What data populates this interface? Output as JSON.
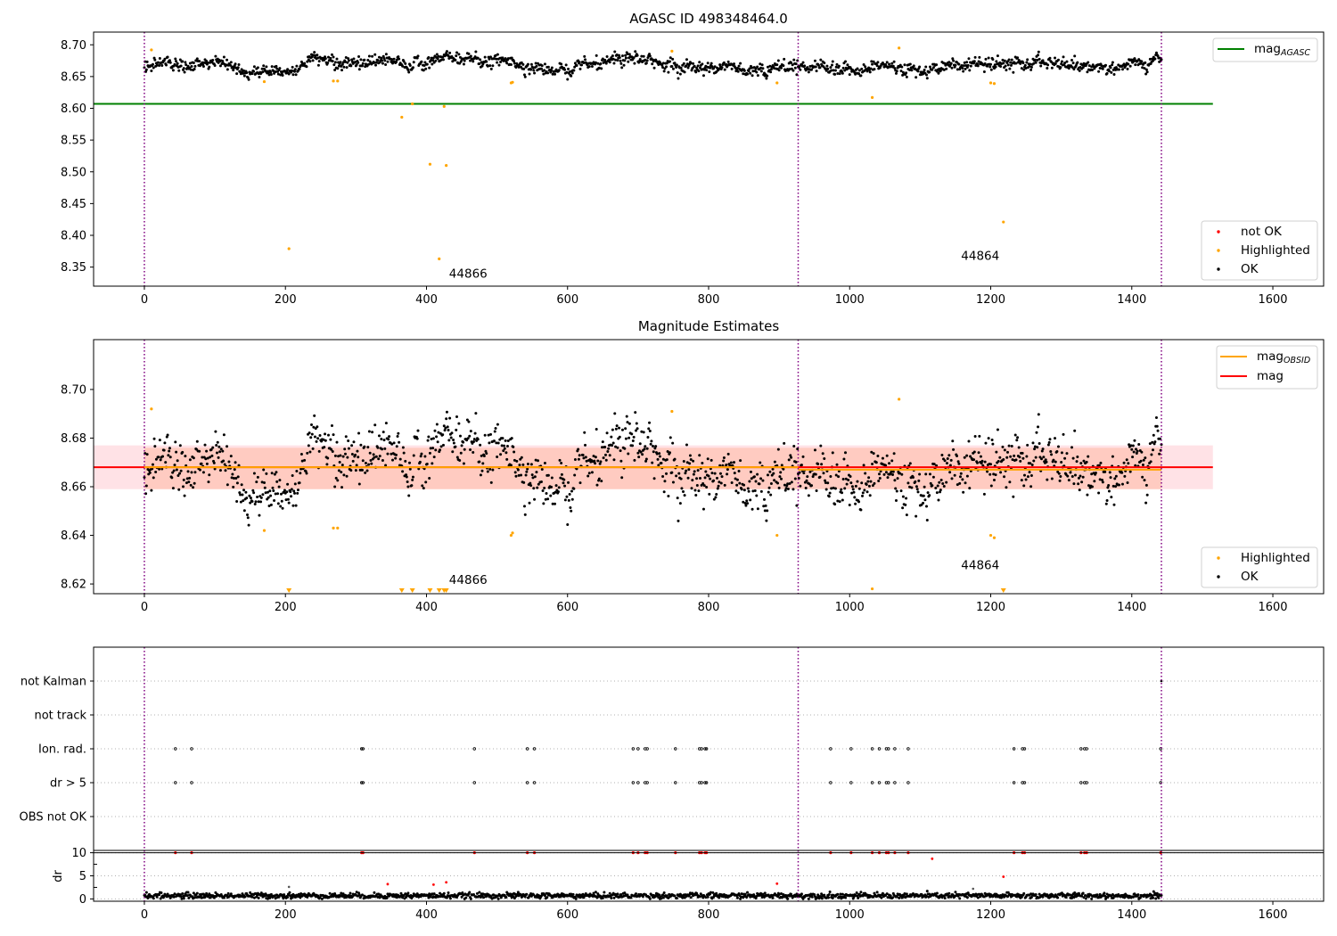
{
  "chart_data": [
    {
      "type": "scatter",
      "title": "AGASC ID 498348464.0",
      "xlabel": "",
      "ylabel": "",
      "xlim": [
        -72,
        1672
      ],
      "ylim": [
        8.32,
        8.72
      ],
      "x_ticks": [
        "0",
        "200",
        "400",
        "600",
        "800",
        "1000",
        "1200",
        "1400",
        "1600"
      ],
      "y_ticks": [
        "8.35",
        "8.40",
        "8.45",
        "8.50",
        "8.55",
        "8.60",
        "8.65",
        "8.70"
      ],
      "grid": false,
      "legend_upper": {
        "placement": "top-right",
        "entries": [
          {
            "label_base": "mag",
            "label_sub": "AGASC",
            "color": "#008000"
          }
        ]
      },
      "legend_lower": {
        "placement": "bottom-right",
        "entries": [
          {
            "label": "not OK",
            "color": "#ff0000"
          },
          {
            "label": "Highlighted",
            "color": "#ffa500"
          },
          {
            "label": "OK",
            "color": "#000000"
          }
        ]
      },
      "mag_agasc": 8.607,
      "ok_series": {
        "color": "#000000",
        "x_range": [
          0,
          1442
        ],
        "mean": 8.668,
        "spread": 0.008
      },
      "highlighted": {
        "color": "#ffa500",
        "x": [
          10,
          170,
          205,
          268,
          274,
          365,
          380,
          405,
          418,
          425,
          428,
          520,
          522,
          748,
          897,
          1032,
          1070,
          1200,
          1205,
          1218
        ],
        "y": [
          8.692,
          8.642,
          8.379,
          8.643,
          8.643,
          8.586,
          8.607,
          8.512,
          8.363,
          8.603,
          8.51,
          8.64,
          8.641,
          8.69,
          8.64,
          8.617,
          8.695,
          8.64,
          8.639,
          8.421
        ]
      },
      "obsid_boundaries": [
        0,
        927,
        1442
      ],
      "annotations": [
        {
          "text": "44866",
          "x": 432,
          "y": 8.339
        },
        {
          "text": "44864",
          "x": 1158,
          "y": 8.367
        }
      ]
    },
    {
      "type": "scatter",
      "title": "Magnitude Estimates",
      "xlabel": "",
      "ylabel": "",
      "xlim": [
        -72,
        1672
      ],
      "ylim": [
        8.616,
        8.7205
      ],
      "x_ticks": [
        "0",
        "200",
        "400",
        "600",
        "800",
        "1000",
        "1200",
        "1400",
        "1600"
      ],
      "y_ticks": [
        "8.62",
        "8.64",
        "8.66",
        "8.68",
        "8.70"
      ],
      "grid": false,
      "legend_upper": {
        "placement": "top-right",
        "entries": [
          {
            "label_base": "mag",
            "label_sub": "OBSID",
            "color": "#ffa500"
          },
          {
            "label_base": "mag",
            "label_sub": "",
            "color": "#ff0000"
          }
        ]
      },
      "legend_lower": {
        "placement": "bottom-right",
        "entries": [
          {
            "label": "Highlighted",
            "color": "#ffa500"
          },
          {
            "label": "OK",
            "color": "#000000"
          }
        ]
      },
      "mag": 8.668,
      "mag_band": [
        8.659,
        8.677
      ],
      "mag_obsid": [
        {
          "x0": 0,
          "x1": 927,
          "value": 8.668,
          "band": [
            8.659,
            8.676
          ]
        },
        {
          "x0": 927,
          "x1": 1442,
          "value": 8.667,
          "band": [
            8.659,
            8.676
          ]
        }
      ],
      "highlighted": {
        "color": "#ffa500",
        "x": [
          10,
          170,
          268,
          274,
          520,
          522,
          748,
          897,
          1032,
          1070,
          1200,
          1205
        ],
        "y": [
          8.692,
          8.642,
          8.643,
          8.643,
          8.64,
          8.641,
          8.691,
          8.64,
          8.618,
          8.696,
          8.64,
          8.639
        ]
      },
      "off_scale_markers_x": [
        205,
        365,
        380,
        405,
        418,
        425,
        428,
        1218
      ],
      "obsid_boundaries": [
        0,
        927,
        1442
      ],
      "annotations": [
        {
          "text": "44866",
          "x": 432,
          "y": 8.6215
        },
        {
          "text": "44864",
          "x": 1158,
          "y": 8.6275
        }
      ]
    },
    {
      "type": "scatter",
      "title": "",
      "xlabel": "",
      "ylabel": "",
      "xlim": [
        -72,
        1672
      ],
      "categories": [
        "not Kalman",
        "not track",
        "Ion. rad.",
        "dr > 5",
        "OBS not OK"
      ],
      "flag_x": [
        44,
        67,
        308,
        310,
        468,
        543,
        553,
        693,
        700,
        710,
        713,
        753,
        787,
        790,
        795,
        797,
        973,
        1002,
        1032,
        1042,
        1052,
        1055,
        1064,
        1083,
        1233,
        1245,
        1248,
        1328,
        1333,
        1336,
        1441
      ],
      "not_kalman_x": [
        1442
      ],
      "obsid_boundaries": [
        0,
        927,
        1442
      ]
    },
    {
      "type": "scatter",
      "title": "",
      "xlabel": "",
      "ylabel": "dr",
      "xlim": [
        -72,
        1672
      ],
      "ylim": [
        -0.5,
        10.5
      ],
      "x_ticks": [
        "0",
        "200",
        "400",
        "600",
        "800",
        "1000",
        "1200",
        "1400",
        "1600"
      ],
      "y_ticks": [
        "0",
        "5",
        "10"
      ],
      "threshold_line": 10,
      "ok_series": {
        "color": "#000000",
        "x_range": [
          0,
          1442
        ],
        "mean": 0.7,
        "spread": 0.3
      },
      "not_ok": {
        "color": "#ff0000",
        "x": [
          44,
          67,
          308,
          310,
          468,
          543,
          553,
          693,
          700,
          710,
          713,
          753,
          787,
          790,
          795,
          797,
          973,
          1002,
          1032,
          1042,
          1052,
          1055,
          1064,
          1083,
          1233,
          1245,
          1248,
          1328,
          1333,
          1336,
          1441
        ],
        "y": [
          10,
          10,
          10,
          10,
          10,
          10,
          10,
          10,
          10,
          10,
          10,
          10,
          10,
          10,
          10,
          10,
          10,
          10,
          10,
          10,
          10,
          10,
          10,
          10,
          10,
          10,
          10,
          10,
          10,
          10,
          10
        ]
      },
      "red_low": {
        "x": [
          345,
          410,
          428,
          897,
          1117,
          1218
        ],
        "y": [
          3.2,
          3.1,
          3.6,
          3.3,
          8.7,
          4.8
        ]
      },
      "gray_dots": {
        "x": [
          205,
          1175
        ],
        "y": [
          2.6,
          2.2
        ]
      },
      "obsid_boundaries": [
        0,
        927,
        1442
      ]
    }
  ]
}
